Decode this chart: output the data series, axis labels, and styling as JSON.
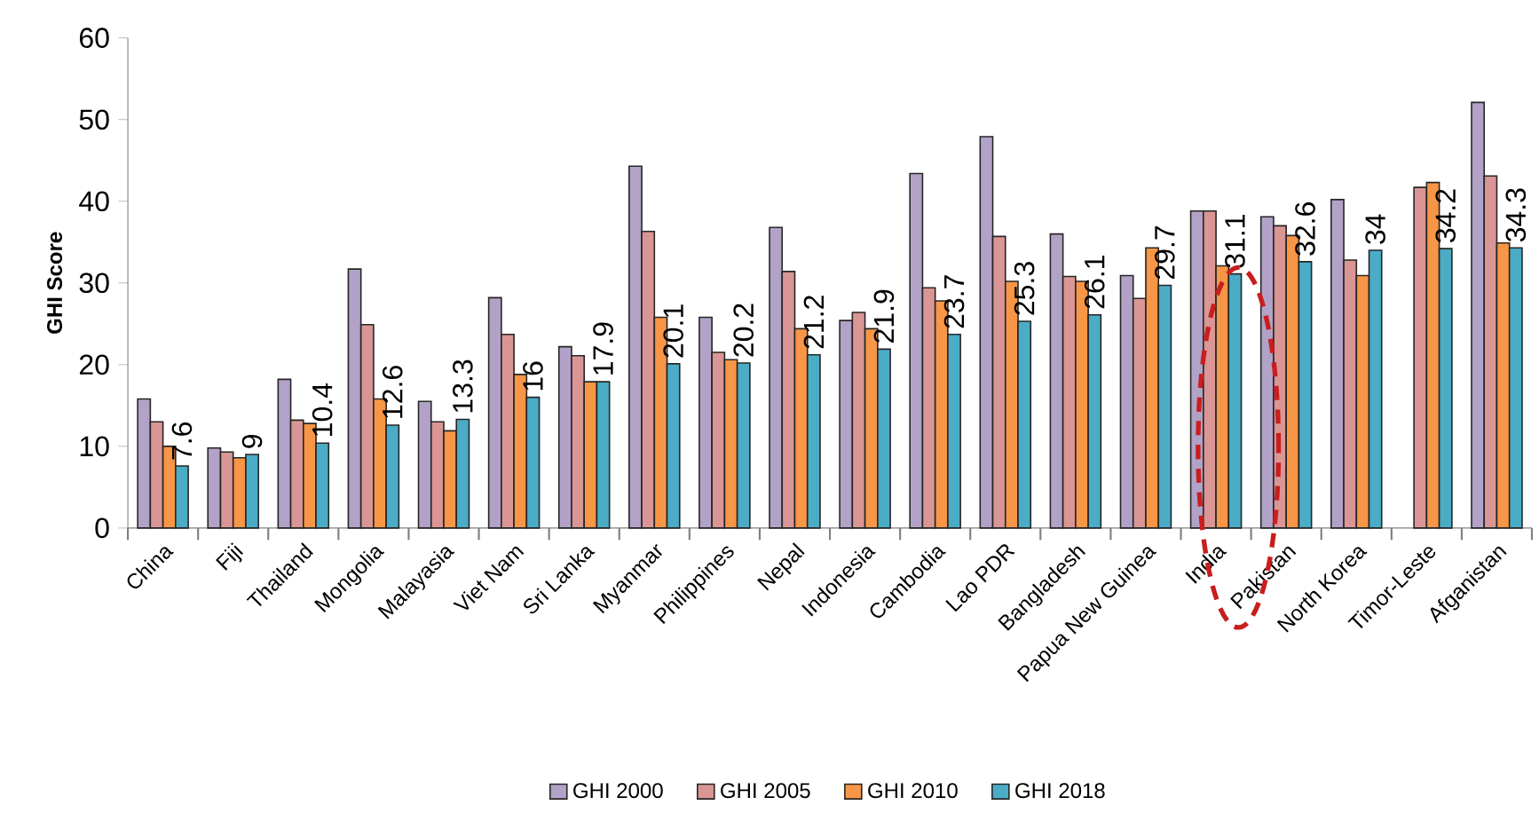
{
  "chart_data": {
    "type": "bar",
    "ylabel": "GHI Score",
    "categories": [
      "China",
      "Fiji",
      "Thailand",
      "Mongolia",
      "Malayasia",
      "Viet Nam",
      "Sri Lanka",
      "Myanmar",
      "Philippines",
      "Nepal",
      "Indonesia",
      "Cambodia",
      "Lao PDR",
      "Bangladesh",
      "Papua New Guinea",
      "India",
      "Pakistan",
      "North Korea",
      "Timor-Leste",
      "Afganistan"
    ],
    "series": [
      {
        "name": "GHI 2000",
        "color": "#b3a2c7",
        "values": [
          15.8,
          9.8,
          18.2,
          31.7,
          15.5,
          28.2,
          22.2,
          44.3,
          25.8,
          36.8,
          25.4,
          43.4,
          47.9,
          36,
          30.9,
          38.8,
          38.1,
          40.2,
          null,
          52.1
        ]
      },
      {
        "name": "GHI 2005",
        "color": "#d99694",
        "values": [
          13,
          9.3,
          13.2,
          24.9,
          13,
          23.7,
          21.1,
          36.3,
          21.5,
          31.4,
          26.4,
          29.4,
          35.7,
          30.8,
          28.1,
          38.8,
          37,
          32.8,
          41.7,
          43.1
        ]
      },
      {
        "name": "GHI 2010",
        "color": "#f79646",
        "values": [
          10,
          8.6,
          12.8,
          15.8,
          11.9,
          18.8,
          17.9,
          25.8,
          20.6,
          24.4,
          24.4,
          27.8,
          30.2,
          30.2,
          34.3,
          32.1,
          35.8,
          30.9,
          42.3,
          34.9
        ]
      },
      {
        "name": "GHI 2018",
        "color": "#4bacc6",
        "values": [
          7.6,
          9,
          10.4,
          12.6,
          13.3,
          16,
          17.9,
          20.1,
          20.2,
          21.2,
          21.9,
          23.7,
          25.3,
          26.1,
          29.7,
          31.1,
          32.6,
          34,
          34.2,
          34.3
        ],
        "value_labels": [
          "7.6",
          "9",
          "10.4",
          "12.6",
          "13.3",
          "16",
          "17.9",
          "20.1",
          "20.2",
          "21.2",
          "21.9",
          "23.7",
          "25.3",
          "26.1",
          "29.7",
          "31.1",
          "32.6",
          "34",
          "34.2",
          "34.3"
        ]
      }
    ],
    "ylim": [
      0,
      60
    ],
    "yticks": [
      0,
      10,
      20,
      30,
      40,
      50,
      60
    ],
    "grid": false,
    "legend": "bottom"
  }
}
